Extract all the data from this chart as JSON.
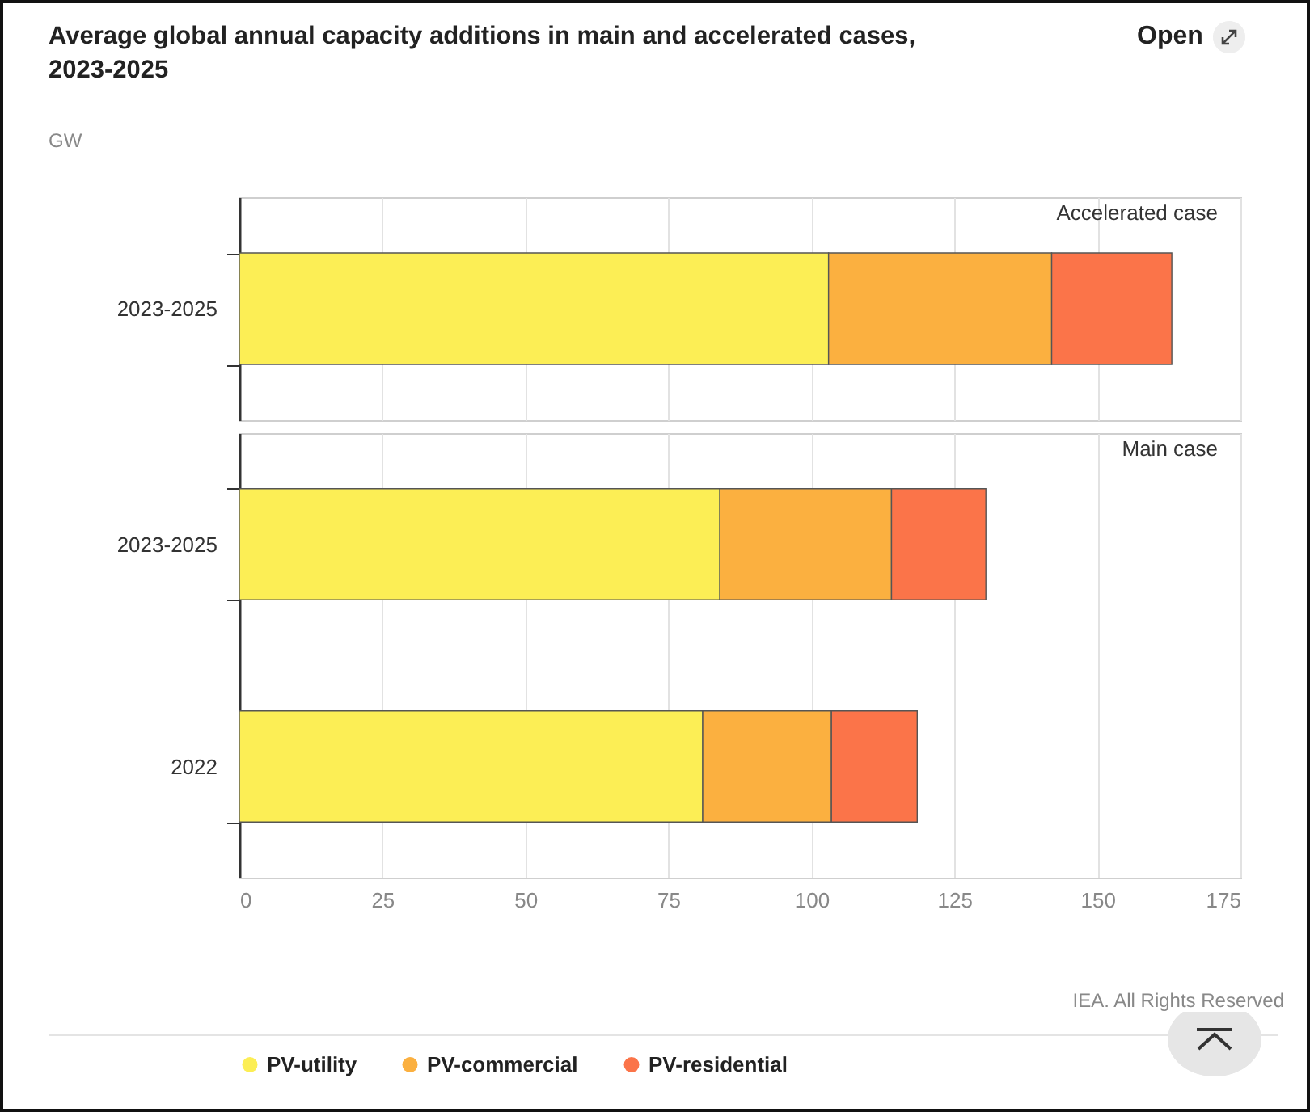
{
  "chart_data": [
    {
      "type": "bar",
      "orientation": "horizontal",
      "stacked": true,
      "title": "Average global annual capacity additions in main and accelerated cases, 2023-2025",
      "subtitle": "GW",
      "categories": [
        "2023-2025"
      ],
      "series": [
        {
          "color": "#fcee55",
          "values": [
            103
          ]
        },
        {
          "color": "#fbb040",
          "values": [
            39
          ]
        },
        {
          "color": "#fb7449",
          "values": [
            21
          ]
        }
      ],
      "xlim": [
        0,
        175
      ],
      "xticks": [
        0,
        25,
        50,
        75,
        100,
        125,
        150,
        175
      ],
      "grid": "x",
      "tick_labels": "y",
      "annotations": [
        "Accelerated case",
        "Open"
      ]
    },
    {
      "type": "bar",
      "orientation": "horizontal",
      "stacked": true,
      "categories": [
        "2023-2025",
        "2022"
      ],
      "series": [
        {
          "name": "PV-utility",
          "color": "#fcee55",
          "values": [
            84,
            81
          ]
        },
        {
          "name": "PV-commercial",
          "color": "#fbb040",
          "values": [
            30,
            22.5
          ]
        },
        {
          "name": "PV-residential",
          "color": "#fb7449",
          "values": [
            16.5,
            15
          ]
        }
      ],
      "xlim": [
        0,
        175
      ],
      "xticks": [
        0,
        25,
        50,
        75,
        100,
        125,
        150,
        175
      ],
      "grid": "x",
      "legend": "bottom",
      "annotations": [
        "Main case",
        "IEA. All Rights Reserved"
      ]
    }
  ]
}
